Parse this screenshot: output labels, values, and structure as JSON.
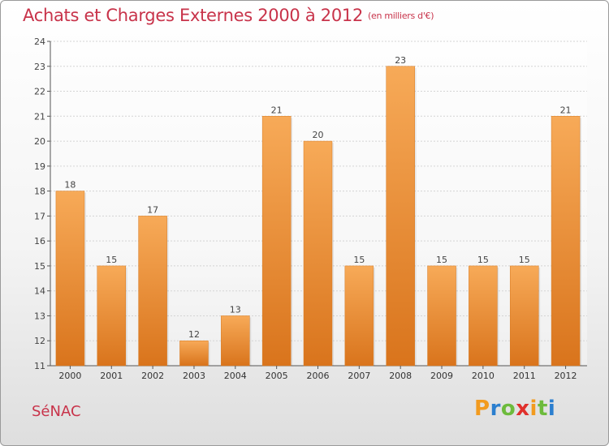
{
  "chart_data": {
    "type": "bar",
    "title": "Achats et Charges Externes 2000 à 2012",
    "subtitle": "(en milliers d'€)",
    "categories": [
      "2000",
      "2001",
      "2002",
      "2003",
      "2004",
      "2005",
      "2006",
      "2007",
      "2008",
      "2009",
      "2010",
      "2011",
      "2012"
    ],
    "values": [
      18,
      15,
      17,
      12,
      13,
      21,
      20,
      15,
      23,
      15,
      15,
      15,
      21
    ],
    "ylim": [
      11,
      24
    ],
    "yticks": [
      11,
      12,
      13,
      14,
      15,
      16,
      17,
      18,
      19,
      20,
      21,
      22,
      23,
      24
    ],
    "xlabel": "",
    "ylabel": "",
    "grid": "horizontal",
    "bar_color": "#f0902e",
    "bar_color_top": "#f7aa58",
    "bar_color_bottom": "#d9741c"
  },
  "footer": {
    "place": "SéNAC",
    "logo_letters": [
      "P",
      "r",
      "o",
      "x",
      "i",
      "t",
      "i"
    ],
    "logo_colors": [
      "#f29b1f",
      "#2b7fcf",
      "#6dbb3c",
      "#e0302c",
      "#f29b1f",
      "#6dbb3c",
      "#2b7fcf"
    ]
  },
  "colors": {
    "title": "#c8334a"
  }
}
